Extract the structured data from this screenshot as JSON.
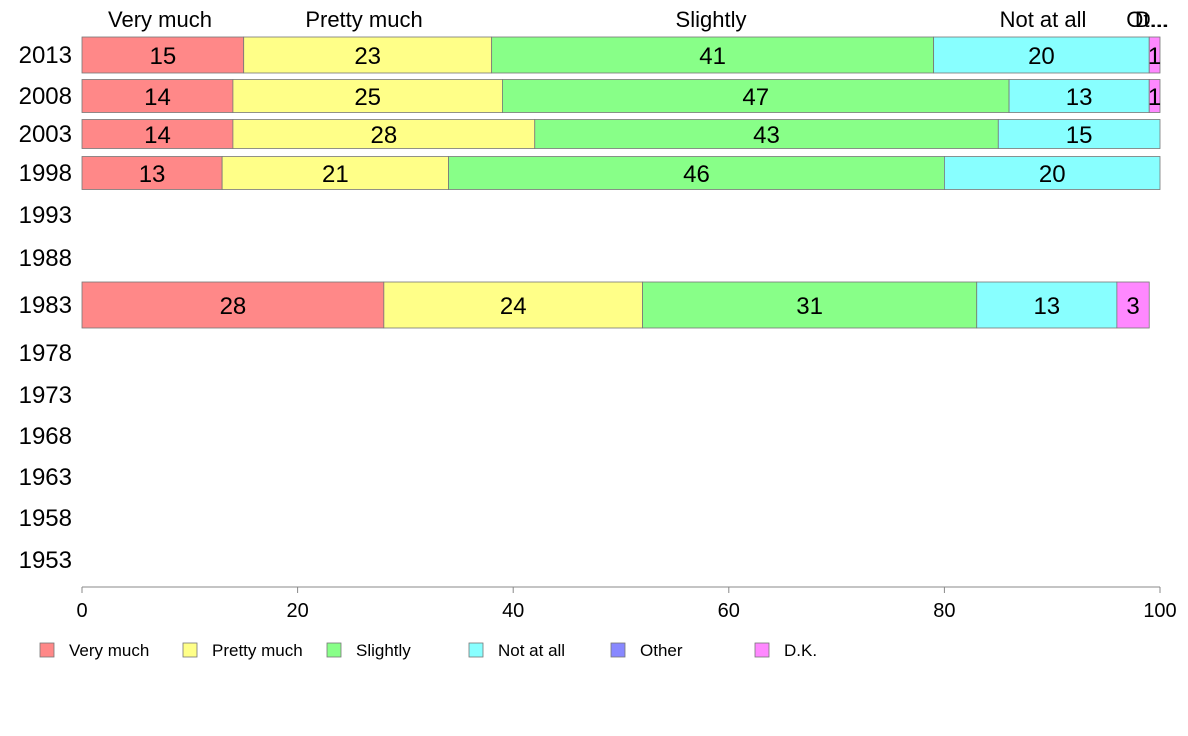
{
  "chart_data": {
    "type": "bar",
    "orientation": "horizontal",
    "stacked": true,
    "categories": [
      "2013",
      "2008",
      "2003",
      "1998",
      "1993",
      "1988",
      "1983",
      "1978",
      "1973",
      "1968",
      "1963",
      "1958",
      "1953"
    ],
    "series": [
      {
        "name": "Very much",
        "color": "#ff8888",
        "values": [
          15,
          14,
          14,
          13,
          null,
          null,
          28,
          null,
          null,
          null,
          null,
          null,
          null
        ],
        "labels": [
          "15",
          "14",
          "14",
          "13",
          "",
          "",
          "28",
          "",
          "",
          "",
          "",
          "",
          ""
        ]
      },
      {
        "name": "Pretty much",
        "color": "#ffff88",
        "values": [
          23,
          25,
          28,
          21,
          null,
          null,
          24,
          null,
          null,
          null,
          null,
          null,
          null
        ],
        "labels": [
          "23",
          "25",
          "28",
          "21",
          "",
          "",
          "24",
          "",
          "",
          "",
          "",
          "",
          ""
        ]
      },
      {
        "name": "Slightly",
        "color": "#88ff88",
        "values": [
          41,
          47,
          43,
          46,
          null,
          null,
          31,
          null,
          null,
          null,
          null,
          null,
          null
        ],
        "labels": [
          "41",
          "47",
          "43",
          "46",
          "",
          "",
          "31",
          "",
          "",
          "",
          "",
          "",
          ""
        ]
      },
      {
        "name": "Not at all",
        "color": "#88ffff",
        "values": [
          20,
          13,
          15,
          20,
          null,
          null,
          13,
          null,
          null,
          null,
          null,
          null,
          null
        ],
        "labels": [
          "20",
          "13",
          "15",
          "20",
          "",
          "",
          "13",
          "",
          "",
          "",
          "",
          "",
          ""
        ]
      },
      {
        "name": "Other",
        "color": "#8888ff",
        "values": [
          0,
          0,
          0,
          0,
          null,
          null,
          0,
          null,
          null,
          null,
          null,
          null,
          null
        ],
        "labels": [
          "",
          "",
          "",
          "",
          "",
          "",
          "",
          "",
          "",
          "",
          "",
          "",
          ""
        ]
      },
      {
        "name": "D.K.",
        "color": "#ff88ff",
        "values": [
          1,
          1,
          0,
          0,
          null,
          null,
          3,
          null,
          null,
          null,
          null,
          null,
          null
        ],
        "labels": [
          "1",
          "1",
          "",
          "",
          "",
          "",
          "3",
          "",
          "",
          "",
          "",
          "",
          ""
        ]
      }
    ],
    "top_labels": [
      "Very much",
      "Pretty much",
      "Slightly",
      "Not at all",
      "Ot...",
      "D..."
    ],
    "xlim": [
      0,
      100
    ],
    "xticks": [
      "0",
      "20",
      "40",
      "60",
      "80",
      "100"
    ],
    "legend_position": "bottom",
    "grid": false
  }
}
